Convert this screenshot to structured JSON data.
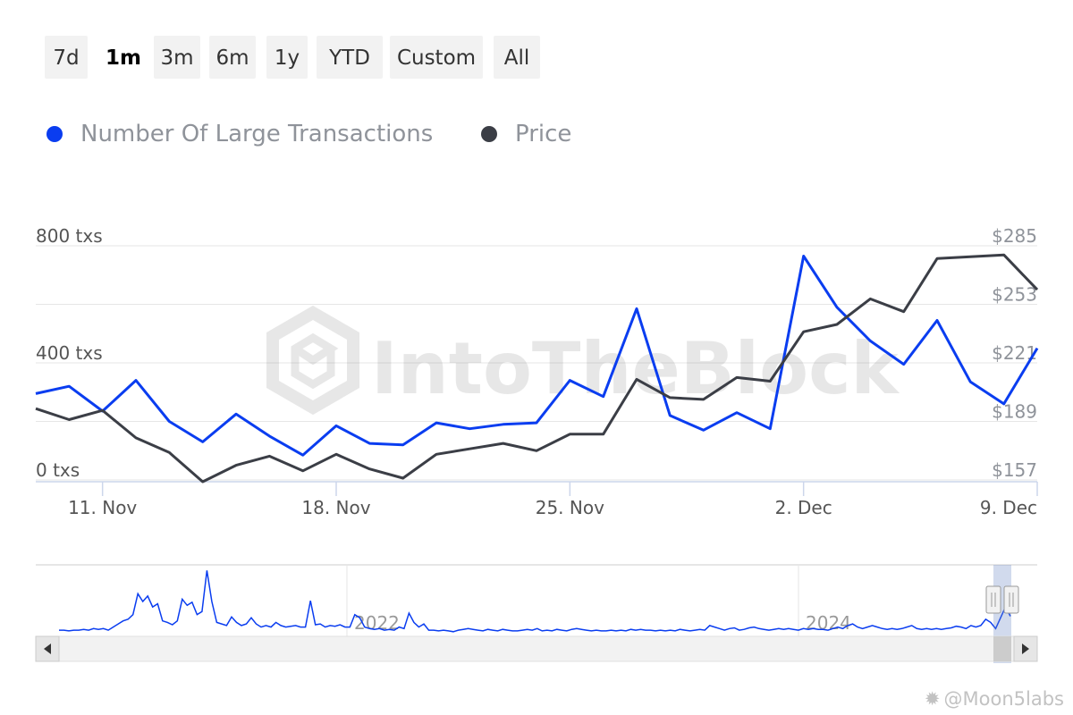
{
  "range_selector": {
    "buttons": [
      {
        "label": "7d",
        "active": false
      },
      {
        "label": "1m",
        "active": true
      },
      {
        "label": "3m",
        "active": false
      },
      {
        "label": "6m",
        "active": false
      },
      {
        "label": "1y",
        "active": false
      },
      {
        "label": "YTD",
        "active": false
      },
      {
        "label": "Custom",
        "active": false
      },
      {
        "label": "All",
        "active": false
      }
    ]
  },
  "legend": {
    "items": [
      {
        "label": "Number Of Large Transactions",
        "color": "#0a3df0"
      },
      {
        "label": "Price",
        "color": "#3b3e46"
      }
    ]
  },
  "watermark": {
    "text": "IntoTheBlock"
  },
  "credit": {
    "text": "@Moon5labs"
  },
  "chart_data": [
    {
      "type": "line",
      "x_labels": [
        "11. Nov",
        "18. Nov",
        "25. Nov",
        "2. Dec",
        "9. Dec"
      ],
      "x_start": "2024-11-09",
      "x_end": "2024-12-09",
      "left_axis": {
        "ticks": [
          "0 txs",
          "400 txs",
          "800 txs"
        ],
        "range": [
          0,
          800
        ]
      },
      "right_axis": {
        "ticks": [
          "$157",
          "$189",
          "$221",
          "$253",
          "$285"
        ],
        "range": [
          157,
          285
        ]
      },
      "grid": true,
      "legend_position": "top-left",
      "series": [
        {
          "name": "Number Of Large Transactions",
          "axis": "left",
          "color": "#0a3df0",
          "data": [
            [
              "2024-11-09",
              295
            ],
            [
              "2024-11-10",
              320
            ],
            [
              "2024-11-11",
              235
            ],
            [
              "2024-11-12",
              340
            ],
            [
              "2024-11-13",
              200
            ],
            [
              "2024-11-14",
              130
            ],
            [
              "2024-11-15",
              225
            ],
            [
              "2024-11-16",
              150
            ],
            [
              "2024-11-17",
              85
            ],
            [
              "2024-11-18",
              185
            ],
            [
              "2024-11-19",
              125
            ],
            [
              "2024-11-20",
              120
            ],
            [
              "2024-11-21",
              195
            ],
            [
              "2024-11-22",
              175
            ],
            [
              "2024-11-23",
              190
            ],
            [
              "2024-11-24",
              195
            ],
            [
              "2024-11-25",
              340
            ],
            [
              "2024-11-26",
              285
            ],
            [
              "2024-11-27",
              585
            ],
            [
              "2024-11-28",
              220
            ],
            [
              "2024-11-29",
              170
            ],
            [
              "2024-11-30",
              230
            ],
            [
              "2024-12-01",
              175
            ],
            [
              "2024-12-02",
              765
            ],
            [
              "2024-12-03",
              590
            ],
            [
              "2024-12-04",
              475
            ],
            [
              "2024-12-05",
              395
            ],
            [
              "2024-12-06",
              545
            ],
            [
              "2024-12-07",
              335
            ],
            [
              "2024-12-08",
              260
            ],
            [
              "2024-12-09",
              450
            ]
          ]
        },
        {
          "name": "Price",
          "axis": "right",
          "color": "#3b3e46",
          "data": [
            [
              "2024-11-09",
              196
            ],
            [
              "2024-11-10",
              190
            ],
            [
              "2024-11-11",
              195
            ],
            [
              "2024-11-12",
              180
            ],
            [
              "2024-11-13",
              172
            ],
            [
              "2024-11-14",
              156
            ],
            [
              "2024-11-15",
              165
            ],
            [
              "2024-11-16",
              170
            ],
            [
              "2024-11-17",
              162
            ],
            [
              "2024-11-18",
              171
            ],
            [
              "2024-11-19",
              163
            ],
            [
              "2024-11-20",
              158
            ],
            [
              "2024-11-21",
              171
            ],
            [
              "2024-11-22",
              174
            ],
            [
              "2024-11-23",
              177
            ],
            [
              "2024-11-24",
              173
            ],
            [
              "2024-11-25",
              182
            ],
            [
              "2024-11-26",
              182
            ],
            [
              "2024-11-27",
              212
            ],
            [
              "2024-11-28",
              202
            ],
            [
              "2024-11-29",
              201
            ],
            [
              "2024-11-30",
              213
            ],
            [
              "2024-12-01",
              211
            ],
            [
              "2024-12-02",
              238
            ],
            [
              "2024-12-03",
              242
            ],
            [
              "2024-12-04",
              256
            ],
            [
              "2024-12-05",
              249
            ],
            [
              "2024-12-06",
              278
            ],
            [
              "2024-12-07",
              279
            ],
            [
              "2024-12-08",
              280
            ],
            [
              "2024-12-09",
              261
            ]
          ]
        }
      ]
    },
    {
      "type": "area",
      "role": "navigator",
      "year_labels": [
        "2022",
        "2024"
      ],
      "series": [
        {
          "color": "#0a3df0",
          "values": [
            8,
            8,
            7,
            8,
            8,
            9,
            8,
            10,
            9,
            10,
            8,
            12,
            16,
            20,
            22,
            28,
            55,
            45,
            52,
            38,
            42,
            20,
            18,
            15,
            20,
            48,
            40,
            44,
            28,
            32,
            85,
            45,
            18,
            16,
            14,
            25,
            18,
            14,
            16,
            24,
            16,
            12,
            14,
            12,
            18,
            14,
            12,
            13,
            14,
            12,
            12,
            46,
            15,
            16,
            12,
            14,
            13,
            15,
            12,
            12,
            28,
            24,
            12,
            10,
            9,
            10,
            8,
            9,
            8,
            12,
            10,
            30,
            18,
            12,
            16,
            8,
            8,
            7,
            8,
            7,
            6,
            8,
            9,
            10,
            9,
            8,
            7,
            9,
            8,
            7,
            9,
            8,
            7,
            7,
            8,
            9,
            8,
            10,
            7,
            8,
            7,
            9,
            8,
            7,
            9,
            10,
            9,
            8,
            7,
            8,
            7,
            7,
            8,
            7,
            8,
            7,
            9,
            8,
            9,
            8,
            8,
            7,
            8,
            7,
            8,
            7,
            9,
            8,
            7,
            8,
            9,
            8,
            14,
            12,
            10,
            8,
            10,
            11,
            8,
            9,
            11,
            12,
            10,
            9,
            8,
            9,
            10,
            9,
            10,
            9,
            8,
            10,
            9,
            10,
            9,
            9,
            8,
            10,
            12,
            10,
            14,
            16,
            12,
            10,
            12,
            14,
            12,
            10,
            9,
            10,
            9,
            10,
            12,
            14,
            10,
            9,
            10,
            9,
            10,
            9,
            10,
            11,
            13,
            12,
            10,
            14,
            12,
            14,
            22,
            18,
            10,
            24,
            38,
            26
          ]
        }
      ]
    }
  ]
}
